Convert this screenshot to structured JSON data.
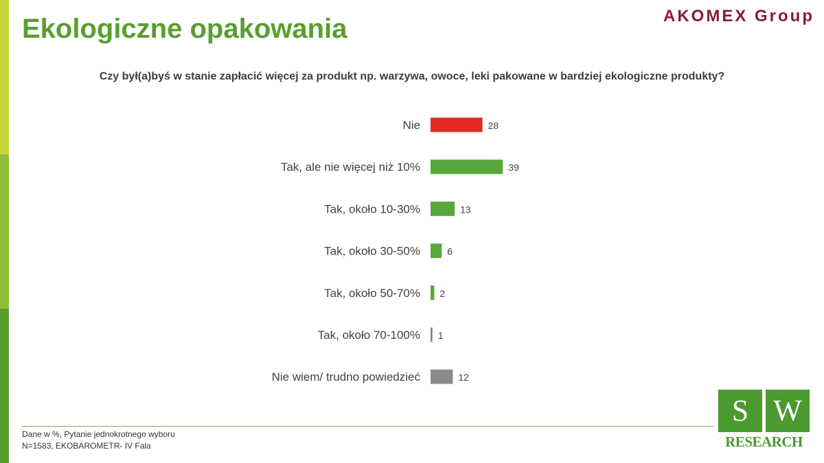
{
  "page": {
    "title": "Ekologiczne opakowania",
    "brand": "AKOMEX Group",
    "question": "Czy był(a)byś  w stanie zapłacić więcej za produkt np. warzywa, owoce, leki pakowane w bardziej ekologiczne produkty?",
    "footnote_1": "Dane w %, Pytanie jednokrotnego wyboru",
    "footnote_2": "N=1583, EKOBAROMETR- IV Fala",
    "logo": {
      "letter_1": "S",
      "letter_2": "W",
      "text": "RESEARCH"
    }
  },
  "colors": {
    "title": "#5a9e2f",
    "brand": "#8b1a2e",
    "stripe_1": "#c6d538",
    "stripe_2": "#8dbf3a",
    "stripe_3": "#5a9e2f",
    "logo_green": "#4a9a2f"
  },
  "chart_data": {
    "type": "bar",
    "orientation": "horizontal",
    "categories": [
      "Nie",
      "Tak, ale nie więcej niż 10%",
      "Tak, około 10-30%",
      "Tak, około 30-50%",
      "Tak, około 50-70%",
      "Tak, około 70-100%",
      "Nie wiem/ trudno powiedzieć"
    ],
    "values": [
      28,
      39,
      13,
      6,
      2,
      1,
      12
    ],
    "bar_colors": [
      "#e32b1f",
      "#56a83a",
      "#56a83a",
      "#56a83a",
      "#56a83a",
      "#56a83a",
      "#8a8a8a"
    ],
    "title": "",
    "xlabel": "",
    "ylabel": "",
    "xlim": [
      0,
      100
    ],
    "data_labels": true,
    "grid": false,
    "legend": "none"
  }
}
